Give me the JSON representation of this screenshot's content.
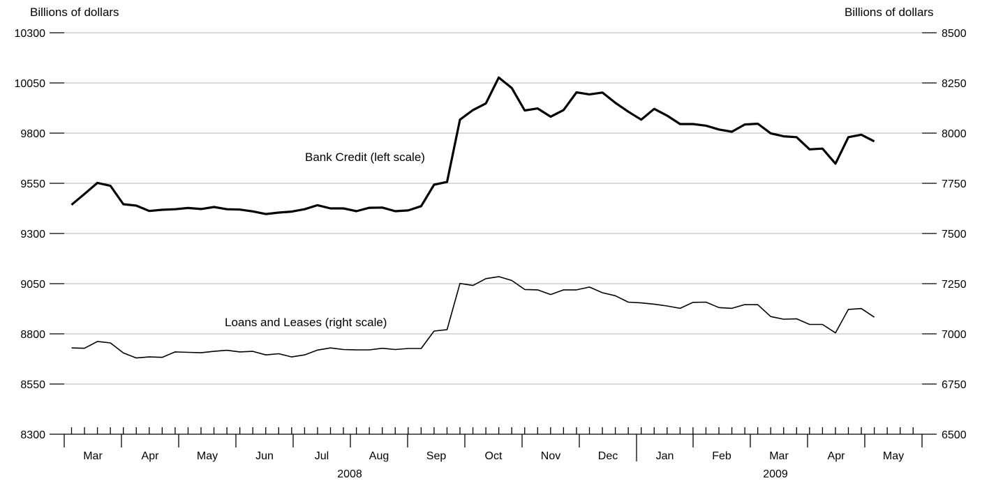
{
  "chart_data": {
    "type": "line",
    "left_axis": {
      "label": "Billions of dollars",
      "ylim": [
        8300,
        10300
      ],
      "ticks": [
        "10300",
        "10050",
        "9800",
        "9550",
        "9300",
        "9050",
        "8800",
        "8550",
        "8300"
      ]
    },
    "right_axis": {
      "label": "Billions of dollars",
      "ylim": [
        6500,
        8500
      ],
      "ticks": [
        "8500",
        "8250",
        "8000",
        "7750",
        "7500",
        "7250",
        "7000",
        "6750",
        "6500"
      ]
    },
    "x_axis": {
      "months": [
        "Mar",
        "Apr",
        "May",
        "Jun",
        "Jul",
        "Aug",
        "Sep",
        "Oct",
        "Nov",
        "Dec",
        "Jan",
        "Feb",
        "Mar",
        "Apr",
        "May"
      ],
      "years": [
        "2008",
        "2009"
      ]
    },
    "grid": true,
    "legend": "none",
    "series": [
      {
        "name": "Bank Credit (left scale)",
        "axis": "left",
        "color": "#000000",
        "values": [
          9443,
          9497,
          9552,
          9538,
          9446,
          9439,
          9412,
          9418,
          9421,
          9427,
          9422,
          9432,
          9421,
          9419,
          9410,
          9397,
          9404,
          9409,
          9421,
          9441,
          9425,
          9425,
          9411,
          9428,
          9429,
          9411,
          9415,
          9436,
          9543,
          9557,
          9867,
          9915,
          9948,
          10077,
          10025,
          9913,
          9923,
          9882,
          9915,
          10003,
          9993,
          10002,
          9951,
          9907,
          9867,
          9921,
          9887,
          9845,
          9845,
          9837,
          9818,
          9807,
          9843,
          9847,
          9799,
          9784,
          9780,
          9719,
          9723,
          9648,
          9780,
          9792,
          9759
        ]
      },
      {
        "name": "Loans and Leases (right scale)",
        "axis": "right",
        "color": "#000000",
        "values": [
          6930,
          6928,
          6962,
          6955,
          6905,
          6880,
          6885,
          6883,
          6910,
          6908,
          6906,
          6913,
          6918,
          6910,
          6913,
          6895,
          6901,
          6885,
          6895,
          6919,
          6930,
          6922,
          6920,
          6920,
          6928,
          6922,
          6927,
          6927,
          7014,
          7021,
          7251,
          7241,
          7275,
          7285,
          7266,
          7221,
          7219,
          7196,
          7219,
          7219,
          7233,
          7205,
          7190,
          7158,
          7154,
          7148,
          7139,
          7127,
          7157,
          7158,
          7131,
          7127,
          7146,
          7145,
          7086,
          7073,
          7075,
          7047,
          7047,
          7005,
          7122,
          7126,
          7083
        ]
      }
    ],
    "annotations": {
      "bank_credit": "Bank Credit (left scale)",
      "loans": "Loans and Leases (right scale)"
    }
  }
}
